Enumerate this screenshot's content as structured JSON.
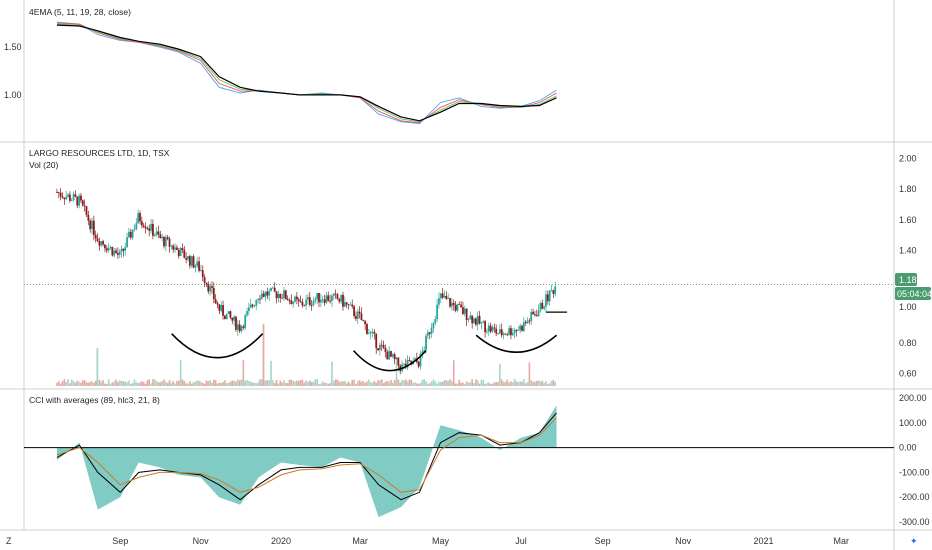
{
  "panels": {
    "ema": {
      "title": "4EMA (5, 11, 19, 28, close)",
      "ticks": [
        1.5,
        1.0
      ],
      "tick_labels": [
        "1.50",
        "1.00"
      ]
    },
    "price": {
      "title": "LARGO RESOURCES LTD, 1D, TSX",
      "vol_label": "Vol (20)",
      "ticks": [
        2.0,
        1.8,
        1.6,
        1.4,
        0.8,
        0.6
      ],
      "tick_labels": [
        "2.00",
        "1.80",
        "1.60",
        "1.40",
        "0.80",
        "0.60"
      ],
      "extra_tick": "1.00",
      "last_price": "1.18",
      "countdown": "05:04:04"
    },
    "cci": {
      "title": "CCI with averages (89, hlc3, 21, 8)",
      "ticks": [
        200,
        100,
        0,
        -100,
        -200,
        -300
      ],
      "tick_labels": [
        "200.00",
        "100.00",
        "0.00",
        "-100.00",
        "-200.00",
        "-300.00"
      ]
    }
  },
  "time_axis": {
    "labels": [
      "Sep",
      "Nov",
      "2020",
      "Mar",
      "May",
      "Jul",
      "Sep",
      "Nov",
      "2021",
      "Mar"
    ]
  },
  "colors": {
    "up": "#26a69a",
    "down": "#8b1a1a",
    "cci_fill": "#80cbc4",
    "ema5": "#42a5f5",
    "ema11": "#ef5350",
    "ema19": "#66bb6a",
    "ema28": "#000000",
    "cci_avg_fast": "#000000",
    "cci_avg_slow": "#c77c2a",
    "last_price_bg": "#4a9d6e"
  },
  "chart_data": [
    {
      "type": "line",
      "title": "4EMA (5, 11, 19, 28, close)",
      "x": [
        "2019-07-15",
        "2019-08-01",
        "2019-08-15",
        "2019-09-01",
        "2019-09-15",
        "2019-10-01",
        "2019-10-15",
        "2019-11-01",
        "2019-11-15",
        "2019-12-01",
        "2019-12-15",
        "2020-01-01",
        "2020-01-15",
        "2020-02-01",
        "2020-02-15",
        "2020-03-01",
        "2020-03-15",
        "2020-04-01",
        "2020-04-15",
        "2020-05-01",
        "2020-05-15",
        "2020-06-01",
        "2020-06-15",
        "2020-07-01",
        "2020-07-15",
        "2020-07-28"
      ],
      "series": [
        {
          "values": [
            1.76,
            1.74,
            1.63,
            1.57,
            1.55,
            1.5,
            1.45,
            1.33,
            1.08,
            1.02,
            1.05,
            1.02,
            1.0,
            1.02,
            1.0,
            0.97,
            0.8,
            0.72,
            0.7,
            0.92,
            0.97,
            0.88,
            0.86,
            0.88,
            0.94,
            1.05
          ]
        },
        {
          "values": [
            1.75,
            1.74,
            1.65,
            1.58,
            1.55,
            1.51,
            1.46,
            1.36,
            1.12,
            1.04,
            1.04,
            1.02,
            1.0,
            1.01,
            1.0,
            0.97,
            0.83,
            0.73,
            0.71,
            0.87,
            0.95,
            0.9,
            0.87,
            0.87,
            0.92,
            1.02
          ]
        },
        {
          "values": [
            1.74,
            1.73,
            1.66,
            1.59,
            1.56,
            1.52,
            1.47,
            1.38,
            1.16,
            1.06,
            1.04,
            1.02,
            1.0,
            1.01,
            1.0,
            0.98,
            0.86,
            0.75,
            0.72,
            0.84,
            0.93,
            0.91,
            0.88,
            0.87,
            0.9,
            0.99
          ]
        },
        {
          "values": [
            1.73,
            1.72,
            1.67,
            1.6,
            1.56,
            1.53,
            1.48,
            1.4,
            1.19,
            1.08,
            1.04,
            1.02,
            1.0,
            1.0,
            1.0,
            0.98,
            0.88,
            0.77,
            0.73,
            0.82,
            0.91,
            0.91,
            0.89,
            0.88,
            0.89,
            0.97
          ]
        }
      ],
      "ylim": [
        0.55,
        1.95
      ]
    },
    {
      "type": "candlestick",
      "title": "LARGO RESOURCES LTD, 1D, TSX",
      "x": [
        "2019-07-15",
        "2019-08-01",
        "2019-08-15",
        "2019-09-01",
        "2019-09-15",
        "2019-10-01",
        "2019-10-15",
        "2019-11-01",
        "2019-11-15",
        "2019-12-01",
        "2019-12-15",
        "2020-01-01",
        "2020-01-15",
        "2020-02-01",
        "2020-02-15",
        "2020-03-01",
        "2020-03-15",
        "2020-04-01",
        "2020-04-15",
        "2020-05-01",
        "2020-05-15",
        "2020-06-01",
        "2020-06-15",
        "2020-07-01",
        "2020-07-15",
        "2020-07-28"
      ],
      "close": [
        1.78,
        1.72,
        1.48,
        1.36,
        1.62,
        1.48,
        1.4,
        1.28,
        1.02,
        0.9,
        1.12,
        1.12,
        1.05,
        1.1,
        1.08,
        0.96,
        0.78,
        0.64,
        0.68,
        1.1,
        1.02,
        0.92,
        0.86,
        0.9,
        1.02,
        1.18
      ],
      "last_price": 1.18,
      "ylim": [
        0.52,
        2.08
      ]
    },
    {
      "type": "area",
      "title": "CCI with averages (89, hlc3, 21, 8)",
      "x": [
        "2019-07-15",
        "2019-08-01",
        "2019-08-15",
        "2019-09-01",
        "2019-09-15",
        "2019-10-01",
        "2019-10-15",
        "2019-11-01",
        "2019-11-15",
        "2019-12-01",
        "2019-12-15",
        "2020-01-01",
        "2020-01-15",
        "2020-02-01",
        "2020-02-15",
        "2020-03-01",
        "2020-03-15",
        "2020-04-01",
        "2020-04-15",
        "2020-05-01",
        "2020-05-15",
        "2020-06-01",
        "2020-06-15",
        "2020-07-01",
        "2020-07-15",
        "2020-07-28"
      ],
      "series": [
        {
          "values": [
            -50,
            20,
            -250,
            -200,
            -60,
            -80,
            -110,
            -120,
            -200,
            -230,
            -120,
            -60,
            -70,
            -80,
            -40,
            -60,
            -280,
            -240,
            -160,
            90,
            70,
            40,
            -10,
            40,
            60,
            170
          ]
        },
        {
          "values": [
            -40,
            10,
            -100,
            -180,
            -100,
            -90,
            -100,
            -110,
            -150,
            -210,
            -150,
            -90,
            -80,
            -80,
            -60,
            -60,
            -150,
            -210,
            -180,
            20,
            60,
            50,
            10,
            20,
            60,
            140
          ]
        },
        {
          "values": [
            -30,
            0,
            -60,
            -150,
            -120,
            -100,
            -100,
            -105,
            -130,
            -180,
            -160,
            -110,
            -90,
            -85,
            -70,
            -65,
            -110,
            -180,
            -170,
            -10,
            40,
            50,
            20,
            20,
            50,
            120
          ]
        }
      ],
      "ylim": [
        -320,
        220
      ]
    }
  ]
}
